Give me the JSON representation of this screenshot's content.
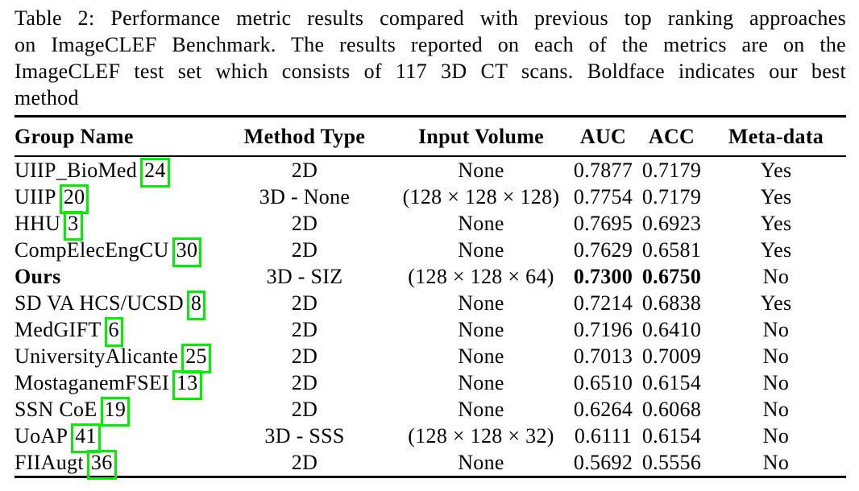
{
  "page": {
    "background": "#ffffff",
    "text_color": "#000000"
  },
  "colors": {
    "citation_box": "#00f000",
    "rule": "#000000"
  },
  "caption": {
    "lines": [
      "Table 2: Performance metric results compared with previous top ranking approaches",
      "on ImageCLEF Benchmark. The results reported on each of the metrics are on the",
      "ImageCLEF test set which consists of 117 3D CT scans. Boldface indicates our best",
      "method"
    ]
  },
  "table": {
    "columns": [
      {
        "key": "group",
        "label": "Group Name"
      },
      {
        "key": "method",
        "label": "Method Type"
      },
      {
        "key": "volume",
        "label": "Input Volume"
      },
      {
        "key": "auc",
        "label": "AUC"
      },
      {
        "key": "acc",
        "label": "ACC"
      },
      {
        "key": "meta",
        "label": "Meta-data"
      }
    ],
    "rows": [
      {
        "group": "UIIP_BioMed",
        "citation": "24",
        "method": "2D",
        "volume": "None",
        "auc": "0.7877",
        "acc": "0.7179",
        "meta": "Yes",
        "highlight": false
      },
      {
        "group": "UIIP",
        "citation": "20",
        "method": "3D - None",
        "volume": "(128 × 128 × 128)",
        "auc": "0.7754",
        "acc": "0.7179",
        "meta": "Yes",
        "highlight": false
      },
      {
        "group": "HHU",
        "citation": "3",
        "method": "2D",
        "volume": "None",
        "auc": "0.7695",
        "acc": "0.6923",
        "meta": "Yes",
        "highlight": false
      },
      {
        "group": "CompElecEngCU",
        "citation": "30",
        "method": "2D",
        "volume": "None",
        "auc": "0.7629",
        "acc": "0.6581",
        "meta": "Yes",
        "highlight": false
      },
      {
        "group": "Ours",
        "citation": "",
        "method": "3D - SIZ",
        "volume": "(128 × 128 × 64)",
        "auc": "0.7300",
        "acc": "0.6750",
        "meta": "No",
        "highlight": true
      },
      {
        "group": "SD VA HCS/UCSD",
        "citation": "8",
        "method": "2D",
        "volume": "None",
        "auc": "0.7214",
        "acc": "0.6838",
        "meta": "Yes",
        "highlight": false
      },
      {
        "group": "MedGIFT",
        "citation": "6",
        "method": "2D",
        "volume": "None",
        "auc": "0.7196",
        "acc": "0.6410",
        "meta": "No",
        "highlight": false
      },
      {
        "group": "UniversityAlicante",
        "citation": "25",
        "method": "2D",
        "volume": "None",
        "auc": "0.7013",
        "acc": "0.7009",
        "meta": "No",
        "highlight": false
      },
      {
        "group": "MostaganemFSEI",
        "citation": "13",
        "method": "2D",
        "volume": "None",
        "auc": "0.6510",
        "acc": "0.6154",
        "meta": "No",
        "highlight": false
      },
      {
        "group": "SSN CoE",
        "citation": "19",
        "method": "2D",
        "volume": "None",
        "auc": "0.6264",
        "acc": "0.6068",
        "meta": "No",
        "highlight": false
      },
      {
        "group": "UoAP",
        "citation": "41",
        "method": "3D - SSS",
        "volume": "(128 × 128 × 32)",
        "auc": "0.6111",
        "acc": "0.6154",
        "meta": "No",
        "highlight": false
      },
      {
        "group": "FIIAugt",
        "citation": "36",
        "method": "2D",
        "volume": "None",
        "auc": "0.5692",
        "acc": "0.5556",
        "meta": "No",
        "highlight": false
      }
    ]
  }
}
